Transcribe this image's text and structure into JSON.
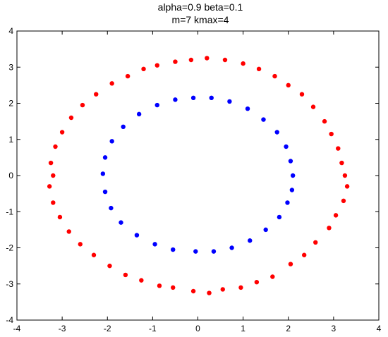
{
  "chart_data": {
    "type": "scatter",
    "title_lines": [
      "alpha=0.9  beta=0.1",
      "m=7  kmax=4"
    ],
    "xlabel": "",
    "ylabel": "",
    "xlim": [
      -4,
      4
    ],
    "ylim": [
      -4,
      4
    ],
    "xticks": [
      -4,
      -3,
      -2,
      -1,
      0,
      1,
      2,
      3,
      4
    ],
    "yticks": [
      -4,
      -3,
      -2,
      -1,
      0,
      1,
      2,
      3,
      4
    ],
    "grid": false,
    "legend": "none",
    "series": [
      {
        "color": "#ff0000",
        "points": [
          [
            3.25,
            0.0
          ],
          [
            3.18,
            0.35
          ],
          [
            3.3,
            -0.3
          ],
          [
            3.1,
            0.75
          ],
          [
            3.22,
            -0.7
          ],
          [
            2.95,
            1.15
          ],
          [
            3.05,
            -1.1
          ],
          [
            2.8,
            1.5
          ],
          [
            2.9,
            -1.45
          ],
          [
            2.55,
            1.9
          ],
          [
            2.6,
            -1.85
          ],
          [
            2.3,
            2.25
          ],
          [
            2.35,
            -2.2
          ],
          [
            2.0,
            2.5
          ],
          [
            2.05,
            -2.45
          ],
          [
            1.7,
            2.75
          ],
          [
            1.65,
            -2.8
          ],
          [
            1.35,
            2.95
          ],
          [
            1.3,
            -2.95
          ],
          [
            1.0,
            3.1
          ],
          [
            0.95,
            -3.1
          ],
          [
            0.6,
            3.2
          ],
          [
            0.55,
            -3.15
          ],
          [
            0.2,
            3.25
          ],
          [
            0.25,
            -3.25
          ],
          [
            -0.15,
            3.2
          ],
          [
            -0.1,
            -3.2
          ],
          [
            -0.5,
            3.15
          ],
          [
            -0.55,
            -3.1
          ],
          [
            -0.9,
            3.05
          ],
          [
            -0.85,
            -3.05
          ],
          [
            -1.2,
            2.95
          ],
          [
            -1.25,
            -2.9
          ],
          [
            -1.55,
            2.75
          ],
          [
            -1.6,
            -2.75
          ],
          [
            -1.9,
            2.55
          ],
          [
            -1.95,
            -2.5
          ],
          [
            -2.25,
            2.25
          ],
          [
            -2.3,
            -2.2
          ],
          [
            -2.55,
            1.95
          ],
          [
            -2.6,
            -1.9
          ],
          [
            -2.8,
            1.6
          ],
          [
            -2.85,
            -1.55
          ],
          [
            -3.0,
            1.2
          ],
          [
            -3.05,
            -1.15
          ],
          [
            -3.15,
            0.8
          ],
          [
            -3.2,
            -0.75
          ],
          [
            -3.25,
            0.35
          ],
          [
            -3.28,
            -0.3
          ],
          [
            -3.2,
            0.0
          ]
        ]
      },
      {
        "color": "#0000ff",
        "points": [
          [
            2.1,
            0.0
          ],
          [
            2.05,
            0.4
          ],
          [
            2.08,
            -0.4
          ],
          [
            1.95,
            0.8
          ],
          [
            1.98,
            -0.75
          ],
          [
            1.75,
            1.2
          ],
          [
            1.8,
            -1.15
          ],
          [
            1.45,
            1.55
          ],
          [
            1.5,
            -1.5
          ],
          [
            1.1,
            1.85
          ],
          [
            1.15,
            -1.8
          ],
          [
            0.7,
            2.05
          ],
          [
            0.75,
            -2.0
          ],
          [
            0.3,
            2.15
          ],
          [
            0.35,
            -2.1
          ],
          [
            -0.1,
            2.15
          ],
          [
            -0.05,
            -2.1
          ],
          [
            -0.5,
            2.1
          ],
          [
            -0.55,
            -2.05
          ],
          [
            -0.9,
            1.95
          ],
          [
            -0.95,
            -1.9
          ],
          [
            -1.3,
            1.7
          ],
          [
            -1.35,
            -1.65
          ],
          [
            -1.65,
            1.35
          ],
          [
            -1.7,
            -1.3
          ],
          [
            -1.9,
            0.95
          ],
          [
            -1.92,
            -0.9
          ],
          [
            -2.05,
            0.5
          ],
          [
            -2.05,
            -0.45
          ],
          [
            -2.1,
            0.05
          ]
        ]
      }
    ]
  }
}
